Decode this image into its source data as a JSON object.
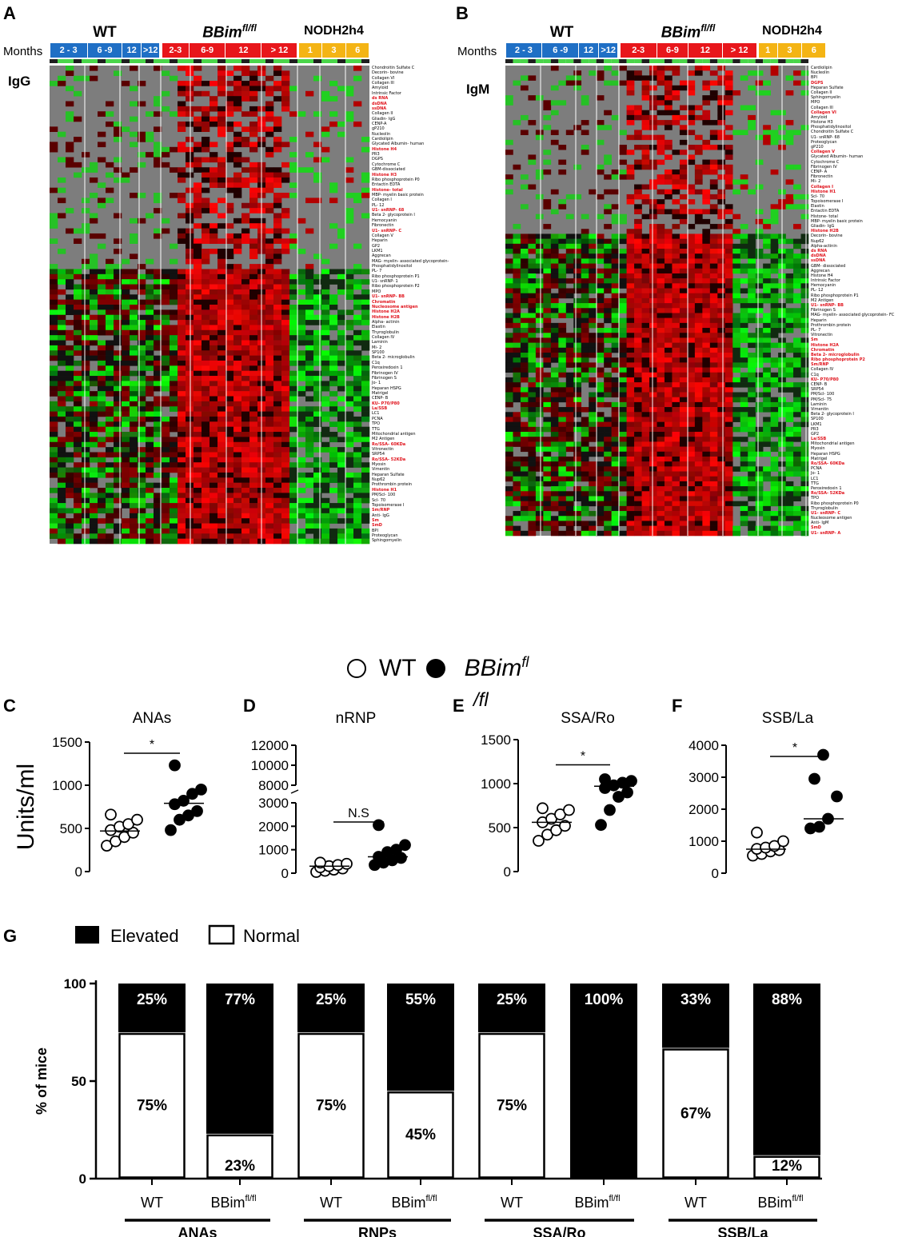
{
  "panels": {
    "A": "A",
    "B": "B",
    "C": "C",
    "D": "D",
    "E": "E",
    "F": "F",
    "G": "G"
  },
  "heatmap_header": {
    "months_label": "Months",
    "groups": [
      "WT",
      "BBim",
      "NODH2h4"
    ],
    "bbim_sup": "fl/fl",
    "wt_months": [
      "2 - 3",
      "6 -9",
      "12",
      ">12"
    ],
    "bbim_months": [
      "2-3",
      "6-9",
      "12",
      "> 12"
    ],
    "nod_months": [
      "1",
      "3",
      "6"
    ],
    "colors": {
      "wt": "#1f6fc5",
      "bbim": "#e8161b",
      "nod": "#f4b414"
    }
  },
  "heatmap_A": {
    "title": "IgG",
    "labels": [
      {
        "t": "Chondroitin Sulfate C",
        "r": false
      },
      {
        "t": "Decorin- bovine",
        "r": false
      },
      {
        "t": "Collagen VI",
        "r": false
      },
      {
        "t": "Collagen III",
        "r": false
      },
      {
        "t": "Amyloid",
        "r": false
      },
      {
        "t": "Intrinsic Factor",
        "r": false
      },
      {
        "t": "ds RNA",
        "r": true
      },
      {
        "t": "dsDNA",
        "r": true
      },
      {
        "t": "ssDNA",
        "r": true
      },
      {
        "t": "Collagen II",
        "r": false
      },
      {
        "t": "Gliadin- IgG",
        "r": false
      },
      {
        "t": "CENP-A",
        "r": false
      },
      {
        "t": "gP210",
        "r": false
      },
      {
        "t": "Nucleolin",
        "r": false
      },
      {
        "t": "Cardiolipin",
        "r": false
      },
      {
        "t": "Glycated Albumin- human",
        "r": false
      },
      {
        "t": "Histone H4",
        "r": true
      },
      {
        "t": "PR3",
        "r": false
      },
      {
        "t": "DGPS",
        "r": false
      },
      {
        "t": "Cytochrome C",
        "r": false
      },
      {
        "t": "GBM-dissociated",
        "r": false
      },
      {
        "t": "Histone H3",
        "r": true
      },
      {
        "t": "Ribo phosphoprotein P0",
        "r": false
      },
      {
        "t": "Entactin EDTA",
        "r": false
      },
      {
        "t": "Histone- total",
        "r": true
      },
      {
        "t": "MBP- myelin basic protein",
        "r": false
      },
      {
        "t": "Collagen I",
        "r": false
      },
      {
        "t": "PL- 12",
        "r": false
      },
      {
        "t": "U1- snRNP- 68",
        "r": true
      },
      {
        "t": "Beta 2- glycoprotein I",
        "r": false
      },
      {
        "t": "Hemocyanin",
        "r": false
      },
      {
        "t": "Fibronectin",
        "r": false
      },
      {
        "t": "U1- snRNP- C",
        "r": true
      },
      {
        "t": "Collagen V",
        "r": false
      },
      {
        "t": "Heparin",
        "r": false
      },
      {
        "t": "GP2",
        "r": false
      },
      {
        "t": "LKM1",
        "r": false
      },
      {
        "t": "Aggrecan",
        "r": false
      },
      {
        "t": "MAG- myelin- associated glycoprotein-",
        "r": false
      },
      {
        "t": "Phosphatidylinositol",
        "r": false
      },
      {
        "t": "PL- 7",
        "r": false
      },
      {
        "t": "Ribo phosphoprotein P1",
        "r": false
      },
      {
        "t": "U1- snRNP- 1",
        "r": false
      },
      {
        "t": "Ribo phosphoprotein P2",
        "r": false
      },
      {
        "t": "MPO",
        "r": false
      },
      {
        "t": "U1- snRNP- BB",
        "r": true
      },
      {
        "t": "Chromatin",
        "r": true
      },
      {
        "t": "Nucleosome antigen",
        "r": true
      },
      {
        "t": "Histone H2A",
        "r": true
      },
      {
        "t": "Histone H2B",
        "r": true
      },
      {
        "t": "Alpha- actinin",
        "r": false
      },
      {
        "t": "Elastin",
        "r": false
      },
      {
        "t": "Thyroglobulin",
        "r": false
      },
      {
        "t": "Collagen IV",
        "r": false
      },
      {
        "t": "Laminin",
        "r": false
      },
      {
        "t": "Mi- 2",
        "r": false
      },
      {
        "t": "SP100",
        "r": false
      },
      {
        "t": "Beta 2- microglobulin",
        "r": false
      },
      {
        "t": "C1q",
        "r": false
      },
      {
        "t": "Peroxiredoxin 1",
        "r": false
      },
      {
        "t": "Fibrinogen IV",
        "r": false
      },
      {
        "t": "Fibrinogen S",
        "r": false
      },
      {
        "t": "Jo- 1",
        "r": false
      },
      {
        "t": "Heparan HSPG",
        "r": false
      },
      {
        "t": "Matrigel",
        "r": false
      },
      {
        "t": "CENP- B",
        "r": false
      },
      {
        "t": "KU- P70/P80",
        "r": true
      },
      {
        "t": "La/SSB",
        "r": true
      },
      {
        "t": "LC1",
        "r": false
      },
      {
        "t": "PCNA",
        "r": false
      },
      {
        "t": "TPO",
        "r": false
      },
      {
        "t": "TTG",
        "r": false
      },
      {
        "t": "Mitochondrial antigen",
        "r": false
      },
      {
        "t": "M2 Antigen",
        "r": false
      },
      {
        "t": "Ro/SSA- 60KDa",
        "r": true
      },
      {
        "t": "Vitronectin",
        "r": false
      },
      {
        "t": "SRP54",
        "r": false
      },
      {
        "t": "Ro/SSA- 52KDa",
        "r": true
      },
      {
        "t": "Myosin",
        "r": false
      },
      {
        "t": "Vimentin",
        "r": false
      },
      {
        "t": "Heparan Sulfate",
        "r": false
      },
      {
        "t": "Nup62",
        "r": false
      },
      {
        "t": "Prothrombin protein",
        "r": false
      },
      {
        "t": "Histone H1",
        "r": true
      },
      {
        "t": "PM/Scl- 100",
        "r": false
      },
      {
        "t": "Scl- 70",
        "r": false
      },
      {
        "t": "Topoisomerase I",
        "r": false
      },
      {
        "t": "Sm/RNP",
        "r": true
      },
      {
        "t": "Anti- IgG",
        "r": false
      },
      {
        "t": "Sm",
        "r": true
      },
      {
        "t": "SmD",
        "r": true
      },
      {
        "t": "BPI",
        "r": false
      },
      {
        "t": "Proteoglycan",
        "r": false
      },
      {
        "t": "Sphingomyelin",
        "r": false
      }
    ]
  },
  "heatmap_B": {
    "title": "IgM",
    "labels": [
      {
        "t": "Cardiolipin",
        "r": false
      },
      {
        "t": "Nucleolin",
        "r": false
      },
      {
        "t": "BPI",
        "r": false
      },
      {
        "t": "DGPS",
        "r": true
      },
      {
        "t": "Heparan Sulfate",
        "r": false
      },
      {
        "t": "Collagen II",
        "r": false
      },
      {
        "t": "Sphingomyelin",
        "r": false
      },
      {
        "t": "MPO",
        "r": false
      },
      {
        "t": "Collagen III",
        "r": false
      },
      {
        "t": "Collagen VI",
        "r": true
      },
      {
        "t": "Amyloid",
        "r": false
      },
      {
        "t": "Histone H3",
        "r": false
      },
      {
        "t": "Phosphatidylinositol",
        "r": false
      },
      {
        "t": "Chondroitin Sulfate C",
        "r": false
      },
      {
        "t": "U1- snRNP- 68",
        "r": false
      },
      {
        "t": "Proteoglycan",
        "r": false
      },
      {
        "t": "gP210",
        "r": false
      },
      {
        "t": "Collagen V",
        "r": true
      },
      {
        "t": "Glycated Albumin- human",
        "r": false
      },
      {
        "t": "Cytochrome C",
        "r": false
      },
      {
        "t": "Fibrinogen IV",
        "r": false
      },
      {
        "t": "CENP- A",
        "r": false
      },
      {
        "t": "Fibronectin",
        "r": false
      },
      {
        "t": "Mi- 2",
        "r": false
      },
      {
        "t": "Collagen I",
        "r": true
      },
      {
        "t": "Histone H1",
        "r": true
      },
      {
        "t": "Scl- 70",
        "r": false
      },
      {
        "t": "Topoisomerase I",
        "r": false
      },
      {
        "t": "Elastin",
        "r": false
      },
      {
        "t": "Entactin EDTA",
        "r": false
      },
      {
        "t": "Histone- total",
        "r": false
      },
      {
        "t": "MBP- myelin basic protein",
        "r": false
      },
      {
        "t": "Gliadin- IgG",
        "r": false
      },
      {
        "t": "Histone H2B",
        "r": true
      },
      {
        "t": "Decorin- bovine",
        "r": false
      },
      {
        "t": "Nup62",
        "r": false
      },
      {
        "t": "Alpha-actinin",
        "r": false
      },
      {
        "t": "ds RNA",
        "r": true
      },
      {
        "t": "dsDNA",
        "r": true
      },
      {
        "t": "ssDNA",
        "r": true
      },
      {
        "t": "GBM- dissociated",
        "r": false
      },
      {
        "t": "Aggrecan",
        "r": false
      },
      {
        "t": "Histone H4",
        "r": false
      },
      {
        "t": "Intrinsic Factor",
        "r": false
      },
      {
        "t": "Hemocyanin",
        "r": false
      },
      {
        "t": "PL- 12",
        "r": false
      },
      {
        "t": "Ribo phosphoprotein P1",
        "r": false
      },
      {
        "t": "M2 Antigen",
        "r": false
      },
      {
        "t": "U1- snRNP- BB",
        "r": true
      },
      {
        "t": "Fibrinogen S",
        "r": false
      },
      {
        "t": "MAG- myelin- associated glycoprotein- FC",
        "r": false
      },
      {
        "t": "Heparin",
        "r": false
      },
      {
        "t": "Prothrombin protein",
        "r": false
      },
      {
        "t": "PL- 7",
        "r": false
      },
      {
        "t": "Vitronectin",
        "r": false
      },
      {
        "t": "Sm",
        "r": true
      },
      {
        "t": "Histone H2A",
        "r": true
      },
      {
        "t": "Chromatin",
        "r": true
      },
      {
        "t": "Beta 2- microglobulin",
        "r": true
      },
      {
        "t": "Ribo phosphoprotein P2",
        "r": true
      },
      {
        "t": "Sm/RNP",
        "r": true
      },
      {
        "t": "Collagen IV",
        "r": false
      },
      {
        "t": "C1q",
        "r": false
      },
      {
        "t": "KU- P70/P80",
        "r": true
      },
      {
        "t": "CENP- B",
        "r": false
      },
      {
        "t": "SRP54",
        "r": false
      },
      {
        "t": "PM/Scl- 100",
        "r": false
      },
      {
        "t": "PM/Scl- 75",
        "r": false
      },
      {
        "t": "Laminin",
        "r": false
      },
      {
        "t": "Vimentin",
        "r": false
      },
      {
        "t": "Beta 2- glycoprotein I",
        "r": false
      },
      {
        "t": "SP100",
        "r": false
      },
      {
        "t": "LKM1",
        "r": false
      },
      {
        "t": "PR3",
        "r": false
      },
      {
        "t": "GP2",
        "r": false
      },
      {
        "t": "La/SSB",
        "r": true
      },
      {
        "t": "Mitochondrial antigen",
        "r": false
      },
      {
        "t": "Myosin",
        "r": false
      },
      {
        "t": "Heparan HSPG",
        "r": false
      },
      {
        "t": "Matrigel",
        "r": false
      },
      {
        "t": "Ro/SSA- 60KDa",
        "r": true
      },
      {
        "t": "PCNA",
        "r": false
      },
      {
        "t": "Jo- 1",
        "r": false
      },
      {
        "t": "LC1",
        "r": false
      },
      {
        "t": "TTG",
        "r": false
      },
      {
        "t": "Peroxiredoxin 1",
        "r": false
      },
      {
        "t": "Ro/SSA- 52KDa",
        "r": true
      },
      {
        "t": "TPO",
        "r": false
      },
      {
        "t": "Ribo phosphoprotein P0",
        "r": false
      },
      {
        "t": "Thyroglobulin",
        "r": false
      },
      {
        "t": "U1- snRNP- C",
        "r": true
      },
      {
        "t": "Nucleosome antigen",
        "r": false
      },
      {
        "t": "Anti- IgM",
        "r": false
      },
      {
        "t": "SmD",
        "r": true
      },
      {
        "t": "U1- snRNP- A",
        "r": true
      }
    ]
  },
  "legend_CF": {
    "wt": "WT",
    "bbim": "BBim",
    "bbim_sup": "fl",
    "bbim_sup2": "/fl"
  },
  "chart_data": [
    {
      "panel": "C",
      "type": "scatter",
      "title": "ANAs",
      "ylabel": "Units/ml",
      "ylim": [
        0,
        1500
      ],
      "yticks": [
        0,
        500,
        1000,
        1500
      ],
      "series": [
        {
          "name": "WT",
          "values": [
            300,
            350,
            400,
            450,
            480,
            520,
            550,
            600,
            660
          ],
          "mean": 470
        },
        {
          "name": "BBim",
          "values": [
            480,
            600,
            650,
            700,
            780,
            820,
            900,
            950,
            1230
          ],
          "mean": 790
        }
      ],
      "sig": "*"
    },
    {
      "panel": "D",
      "type": "scatter",
      "title": "nRNP",
      "ylim": [
        0,
        12000
      ],
      "yticks": [
        0,
        1000,
        2000,
        3000,
        8000,
        10000,
        12000
      ],
      "axis_break": [
        3000,
        8000
      ],
      "series": [
        {
          "name": "WT",
          "values": [
            50,
            100,
            150,
            200,
            250,
            300,
            350,
            400,
            450
          ],
          "mean": 300
        },
        {
          "name": "BBim",
          "values": [
            350,
            450,
            550,
            650,
            700,
            900,
            1000,
            1200,
            2050
          ],
          "mean": 700
        }
      ],
      "sig": "N.S"
    },
    {
      "panel": "E",
      "type": "scatter",
      "title": "SSA/Ro",
      "ylim": [
        0,
        1500
      ],
      "yticks": [
        0,
        500,
        1000,
        1500
      ],
      "series": [
        {
          "name": "WT",
          "values": [
            350,
            420,
            470,
            520,
            560,
            600,
            650,
            700,
            720
          ],
          "mean": 560
        },
        {
          "name": "BBim",
          "values": [
            530,
            700,
            850,
            900,
            950,
            980,
            1010,
            1030,
            1050
          ],
          "mean": 970
        }
      ],
      "sig": "*"
    },
    {
      "panel": "F",
      "type": "scatter",
      "title": "SSB/La",
      "ylim": [
        0,
        4000
      ],
      "yticks": [
        0,
        1000,
        2000,
        3000,
        4000
      ],
      "series": [
        {
          "name": "WT",
          "values": [
            550,
            600,
            680,
            720,
            760,
            800,
            850,
            1000,
            1270
          ],
          "mean": 750
        },
        {
          "name": "BBim",
          "values": [
            1400,
            1450,
            1700,
            2400,
            2950,
            3700
          ],
          "mean": 1700
        }
      ],
      "sig": "*"
    },
    {
      "panel": "G",
      "type": "bar",
      "stacked": true,
      "ylabel": "% of mice",
      "ylim": [
        0,
        100
      ],
      "yticks": [
        0,
        50,
        100
      ],
      "legend": [
        "Elevated",
        "Normal"
      ],
      "bar_labels": [
        "WT",
        "BBim",
        "WT",
        "BBim",
        "WT",
        "BBim",
        "WT",
        "BBim"
      ],
      "bar_sup": "fl/fl",
      "groups": [
        "ANAs",
        "RNPs",
        "SSA/Ro",
        "SSB/La"
      ],
      "series": [
        {
          "name": "Elevated",
          "values": [
            25,
            77,
            25,
            55,
            25,
            100,
            33,
            88
          ]
        },
        {
          "name": "Normal",
          "values": [
            75,
            23,
            75,
            45,
            75,
            0,
            67,
            12
          ]
        }
      ]
    }
  ]
}
